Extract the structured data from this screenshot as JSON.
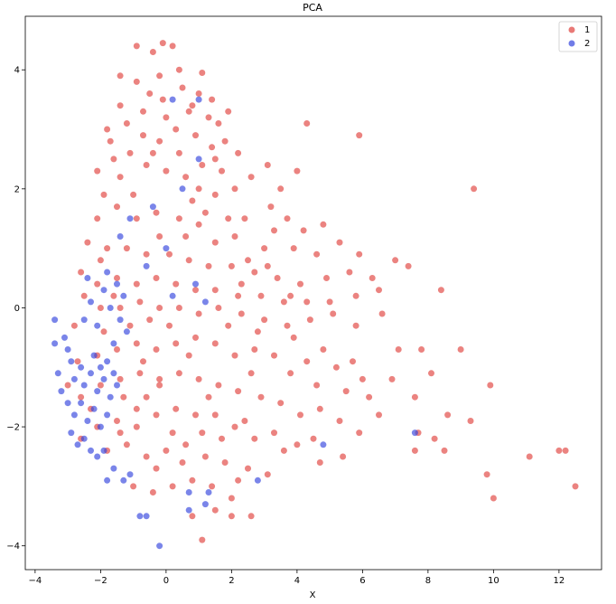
{
  "chart_data": {
    "type": "scatter",
    "title": "PCA",
    "xlabel": "X",
    "ylabel": "",
    "xlim": [
      -4.3,
      13.3
    ],
    "ylim": [
      -4.4,
      4.9
    ],
    "x_ticks": [
      -4,
      -2,
      0,
      2,
      4,
      6,
      8,
      10,
      12
    ],
    "y_ticks": [
      -4,
      -2,
      0,
      2,
      4
    ],
    "grid": false,
    "legend_position": "top-right",
    "series": [
      {
        "name": "1",
        "color": "#e0403c",
        "points": [
          [
            -0.9,
            4.4
          ],
          [
            -0.4,
            4.3
          ],
          [
            -0.1,
            4.45
          ],
          [
            0.2,
            4.4
          ],
          [
            0.4,
            4.0
          ],
          [
            1.1,
            3.95
          ],
          [
            -1.4,
            3.9
          ],
          [
            -0.9,
            3.8
          ],
          [
            -0.2,
            3.9
          ],
          [
            0.5,
            3.7
          ],
          [
            1.0,
            3.6
          ],
          [
            1.4,
            3.5
          ],
          [
            0.7,
            3.3
          ],
          [
            1.3,
            3.2
          ],
          [
            1.6,
            3.1
          ],
          [
            1.9,
            3.3
          ],
          [
            0.0,
            3.2
          ],
          [
            -0.7,
            3.3
          ],
          [
            -1.4,
            3.4
          ],
          [
            -1.8,
            3.0
          ],
          [
            -0.7,
            2.9
          ],
          [
            0.3,
            3.0
          ],
          [
            0.9,
            2.9
          ],
          [
            1.4,
            2.7
          ],
          [
            1.8,
            2.8
          ],
          [
            2.2,
            2.6
          ],
          [
            -1.1,
            2.6
          ],
          [
            -1.6,
            2.5
          ],
          [
            -2.1,
            2.3
          ],
          [
            -1.4,
            2.2
          ],
          [
            -0.6,
            2.4
          ],
          [
            0.0,
            2.3
          ],
          [
            0.6,
            2.2
          ],
          [
            1.0,
            2.0
          ],
          [
            1.5,
            1.9
          ],
          [
            2.1,
            2.0
          ],
          [
            2.6,
            2.2
          ],
          [
            3.1,
            2.4
          ],
          [
            3.5,
            2.0
          ],
          [
            4.3,
            3.1
          ],
          [
            5.9,
            2.9
          ],
          [
            9.4,
            2.0
          ],
          [
            4.0,
            2.3
          ],
          [
            3.2,
            1.7
          ],
          [
            3.7,
            1.5
          ],
          [
            4.2,
            1.3
          ],
          [
            4.8,
            1.4
          ],
          [
            5.3,
            1.1
          ],
          [
            5.9,
            0.9
          ],
          [
            4.6,
            0.9
          ],
          [
            3.0,
            1.0
          ],
          [
            2.5,
            0.8
          ],
          [
            2.1,
            1.2
          ],
          [
            1.5,
            1.1
          ],
          [
            1.0,
            1.4
          ],
          [
            0.4,
            1.5
          ],
          [
            -0.3,
            1.6
          ],
          [
            -0.9,
            1.5
          ],
          [
            -1.5,
            1.7
          ],
          [
            -2.1,
            1.5
          ],
          [
            -2.4,
            1.1
          ],
          [
            -1.8,
            1.0
          ],
          [
            -1.2,
            1.0
          ],
          [
            -0.6,
            0.9
          ],
          [
            0.1,
            0.9
          ],
          [
            0.7,
            0.8
          ],
          [
            1.3,
            0.7
          ],
          [
            2.0,
            0.7
          ],
          [
            2.7,
            0.6
          ],
          [
            3.4,
            0.5
          ],
          [
            4.1,
            0.4
          ],
          [
            4.9,
            0.5
          ],
          [
            5.6,
            0.6
          ],
          [
            6.3,
            0.5
          ],
          [
            7.0,
            0.8
          ],
          [
            7.4,
            0.7
          ],
          [
            6.5,
            0.3
          ],
          [
            5.8,
            0.2
          ],
          [
            5.0,
            0.1
          ],
          [
            4.3,
            0.1
          ],
          [
            3.6,
            0.1
          ],
          [
            2.9,
            0.2
          ],
          [
            2.2,
            0.2
          ],
          [
            1.5,
            0.3
          ],
          [
            0.9,
            0.3
          ],
          [
            0.3,
            0.4
          ],
          [
            -0.3,
            0.5
          ],
          [
            -0.9,
            0.4
          ],
          [
            -1.5,
            0.5
          ],
          [
            -2.1,
            0.4
          ],
          [
            -2.6,
            0.6
          ],
          [
            -2.5,
            0.2
          ],
          [
            -2.0,
            0.0
          ],
          [
            -1.4,
            0.0
          ],
          [
            -0.8,
            0.1
          ],
          [
            -0.2,
            0.0
          ],
          [
            0.4,
            0.0
          ],
          [
            1.0,
            -0.1
          ],
          [
            1.6,
            0.0
          ],
          [
            2.3,
            -0.1
          ],
          [
            3.0,
            -0.2
          ],
          [
            3.7,
            -0.3
          ],
          [
            4.4,
            -0.2
          ],
          [
            5.1,
            -0.1
          ],
          [
            5.8,
            -0.3
          ],
          [
            6.6,
            -0.1
          ],
          [
            8.4,
            0.3
          ],
          [
            7.1,
            -0.7
          ],
          [
            7.8,
            -0.7
          ],
          [
            9.0,
            -0.7
          ],
          [
            8.1,
            -1.1
          ],
          [
            9.9,
            -1.3
          ],
          [
            7.6,
            -1.5
          ],
          [
            8.6,
            -1.8
          ],
          [
            9.3,
            -1.9
          ],
          [
            7.7,
            -2.1
          ],
          [
            8.2,
            -2.2
          ],
          [
            8.5,
            -2.4
          ],
          [
            7.6,
            -2.4
          ],
          [
            9.8,
            -2.8
          ],
          [
            11.1,
            -2.5
          ],
          [
            12.0,
            -2.4
          ],
          [
            12.2,
            -2.4
          ],
          [
            12.5,
            -3.0
          ],
          [
            10.0,
            -3.2
          ],
          [
            6.0,
            -1.2
          ],
          [
            5.5,
            -1.4
          ],
          [
            5.2,
            -1.0
          ],
          [
            4.8,
            -0.7
          ],
          [
            4.3,
            -0.9
          ],
          [
            3.8,
            -1.1
          ],
          [
            3.3,
            -0.8
          ],
          [
            2.7,
            -0.7
          ],
          [
            2.1,
            -0.8
          ],
          [
            1.5,
            -0.6
          ],
          [
            0.9,
            -0.5
          ],
          [
            0.3,
            -0.6
          ],
          [
            -0.3,
            -0.7
          ],
          [
            -0.9,
            -0.6
          ],
          [
            -1.5,
            -0.7
          ],
          [
            -2.1,
            -0.8
          ],
          [
            -2.7,
            -0.9
          ],
          [
            -3.0,
            -1.3
          ],
          [
            -2.6,
            -1.5
          ],
          [
            -2.0,
            -1.3
          ],
          [
            -1.4,
            -1.2
          ],
          [
            -0.8,
            -1.1
          ],
          [
            -0.2,
            -1.2
          ],
          [
            0.4,
            -1.1
          ],
          [
            1.0,
            -1.2
          ],
          [
            1.6,
            -1.3
          ],
          [
            2.2,
            -1.4
          ],
          [
            2.9,
            -1.5
          ],
          [
            3.5,
            -1.6
          ],
          [
            4.1,
            -1.8
          ],
          [
            4.7,
            -1.7
          ],
          [
            5.3,
            -1.9
          ],
          [
            5.9,
            -2.1
          ],
          [
            6.5,
            -1.8
          ],
          [
            5.4,
            -2.5
          ],
          [
            4.7,
            -2.6
          ],
          [
            4.0,
            -2.3
          ],
          [
            3.3,
            -2.1
          ],
          [
            2.7,
            -2.2
          ],
          [
            2.1,
            -2.0
          ],
          [
            1.5,
            -1.8
          ],
          [
            0.9,
            -1.8
          ],
          [
            0.3,
            -1.7
          ],
          [
            -0.3,
            -1.8
          ],
          [
            -0.9,
            -1.7
          ],
          [
            -1.5,
            -1.9
          ],
          [
            -2.1,
            -2.0
          ],
          [
            -2.6,
            -2.2
          ],
          [
            -1.8,
            -2.4
          ],
          [
            -1.2,
            -2.3
          ],
          [
            -0.6,
            -2.5
          ],
          [
            0.0,
            -2.4
          ],
          [
            0.6,
            -2.3
          ],
          [
            1.2,
            -2.5
          ],
          [
            1.8,
            -2.6
          ],
          [
            2.5,
            -2.7
          ],
          [
            3.1,
            -2.8
          ],
          [
            2.0,
            -3.2
          ],
          [
            1.4,
            -3.0
          ],
          [
            0.8,
            -2.9
          ],
          [
            0.2,
            -3.0
          ],
          [
            -0.4,
            -3.1
          ],
          [
            -1.0,
            -3.0
          ],
          [
            0.8,
            -3.5
          ],
          [
            1.5,
            -3.4
          ],
          [
            2.0,
            -3.5
          ],
          [
            2.6,
            -3.5
          ],
          [
            1.1,
            -3.9
          ],
          [
            -0.2,
            -1.3
          ],
          [
            -1.1,
            -0.3
          ],
          [
            -1.6,
            0.2
          ],
          [
            -0.5,
            -0.2
          ],
          [
            0.6,
            1.2
          ],
          [
            -0.2,
            2.8
          ],
          [
            1.2,
            1.6
          ],
          [
            2.4,
            1.5
          ],
          [
            3.3,
            1.3
          ],
          [
            3.9,
            1.0
          ],
          [
            2.8,
            -0.4
          ],
          [
            1.9,
            -0.3
          ],
          [
            0.7,
            -0.8
          ],
          [
            -0.6,
            -1.5
          ],
          [
            -1.3,
            -1.5
          ],
          [
            -2.3,
            -1.7
          ],
          [
            -0.9,
            -2.0
          ],
          [
            0.2,
            -2.1
          ],
          [
            1.1,
            -2.1
          ],
          [
            2.4,
            -1.9
          ],
          [
            3.6,
            -2.4
          ],
          [
            4.5,
            -2.2
          ],
          [
            3.9,
            -0.5
          ],
          [
            4.6,
            -1.3
          ],
          [
            5.7,
            -0.9
          ],
          [
            6.2,
            -1.5
          ],
          [
            6.9,
            -1.2
          ],
          [
            -1.7,
            2.8
          ],
          [
            -1.2,
            3.1
          ],
          [
            -0.4,
            2.6
          ],
          [
            0.4,
            2.6
          ],
          [
            1.1,
            2.4
          ],
          [
            1.7,
            2.3
          ],
          [
            -0.2,
            1.2
          ],
          [
            -1.0,
            1.9
          ],
          [
            0.8,
            1.8
          ],
          [
            2.3,
            0.4
          ],
          [
            3.1,
            0.7
          ],
          [
            3.8,
            0.2
          ],
          [
            2.6,
            -1.1
          ],
          [
            1.3,
            -1.5
          ],
          [
            0.1,
            -0.3
          ],
          [
            -0.7,
            -0.9
          ],
          [
            -1.9,
            -0.4
          ],
          [
            -2.8,
            -0.3
          ],
          [
            -1.4,
            -2.1
          ],
          [
            -0.3,
            -2.7
          ],
          [
            0.5,
            -2.6
          ],
          [
            1.7,
            -2.2
          ],
          [
            2.2,
            -2.9
          ],
          [
            -0.1,
            3.5
          ],
          [
            0.8,
            3.4
          ],
          [
            -0.5,
            3.6
          ],
          [
            1.5,
            2.5
          ],
          [
            -1.9,
            1.9
          ],
          [
            -2.0,
            0.8
          ],
          [
            1.9,
            1.5
          ]
        ]
      },
      {
        "name": "2",
        "color": "#3344dd",
        "points": [
          [
            -3.4,
            -0.6
          ],
          [
            -3.3,
            -1.1
          ],
          [
            -3.1,
            -0.5
          ],
          [
            -3.0,
            -0.7
          ],
          [
            -2.9,
            -0.9
          ],
          [
            -2.8,
            -1.2
          ],
          [
            -2.6,
            -1.0
          ],
          [
            -2.5,
            -1.3
          ],
          [
            -2.3,
            -1.1
          ],
          [
            -2.2,
            -0.8
          ],
          [
            -2.1,
            -1.4
          ],
          [
            -2.0,
            -1.0
          ],
          [
            -1.9,
            -1.2
          ],
          [
            -1.8,
            -0.9
          ],
          [
            -1.7,
            -1.5
          ],
          [
            -1.6,
            -1.1
          ],
          [
            -1.5,
            -1.3
          ],
          [
            -3.2,
            -1.4
          ],
          [
            -3.0,
            -1.6
          ],
          [
            -2.8,
            -1.8
          ],
          [
            -2.6,
            -1.6
          ],
          [
            -2.4,
            -1.9
          ],
          [
            -2.2,
            -1.7
          ],
          [
            -2.0,
            -2.0
          ],
          [
            -1.8,
            -1.8
          ],
          [
            -2.9,
            -2.1
          ],
          [
            -2.7,
            -2.3
          ],
          [
            -2.5,
            -2.2
          ],
          [
            -2.3,
            -2.4
          ],
          [
            -2.1,
            -2.5
          ],
          [
            -1.9,
            -2.4
          ],
          [
            -1.6,
            -2.7
          ],
          [
            -1.3,
            -2.9
          ],
          [
            -1.1,
            -2.8
          ],
          [
            -1.8,
            -2.9
          ],
          [
            -2.5,
            -0.2
          ],
          [
            -2.3,
            0.1
          ],
          [
            -2.1,
            -0.3
          ],
          [
            -1.9,
            0.3
          ],
          [
            -1.7,
            0.0
          ],
          [
            -1.5,
            0.4
          ],
          [
            -1.4,
            -0.2
          ],
          [
            -1.3,
            0.2
          ],
          [
            -1.2,
            -0.4
          ],
          [
            -1.6,
            -0.6
          ],
          [
            -2.4,
            0.5
          ],
          [
            -1.8,
            0.6
          ],
          [
            -0.8,
            -3.5
          ],
          [
            -0.6,
            -3.5
          ],
          [
            -0.2,
            -4.0
          ],
          [
            0.7,
            -3.1
          ],
          [
            1.3,
            -3.1
          ],
          [
            1.2,
            -3.3
          ],
          [
            0.7,
            -3.4
          ],
          [
            2.8,
            -2.9
          ],
          [
            4.8,
            -2.3
          ],
          [
            7.6,
            -2.1
          ],
          [
            -1.4,
            1.2
          ],
          [
            -1.1,
            1.5
          ],
          [
            -0.4,
            1.7
          ],
          [
            0.0,
            1.0
          ],
          [
            0.2,
            0.2
          ],
          [
            0.9,
            0.4
          ],
          [
            1.2,
            0.1
          ],
          [
            -0.6,
            0.7
          ],
          [
            0.2,
            3.5
          ],
          [
            1.0,
            3.5
          ],
          [
            1.0,
            2.5
          ],
          [
            0.5,
            2.0
          ],
          [
            -3.4,
            -0.2
          ]
        ]
      }
    ]
  }
}
